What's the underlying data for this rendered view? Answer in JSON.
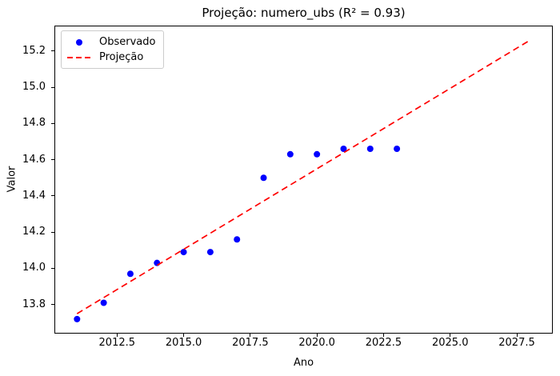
{
  "chart_data": {
    "type": "scatter",
    "title": "Projeção: numero_ubs (R² = 0.93)",
    "xlabel": "Ano",
    "ylabel": "Valor",
    "r_squared": 0.93,
    "grid": false,
    "legend_position": "upper left",
    "xlim": [
      2010.15,
      2028.85
    ],
    "ylim": [
      13.64,
      15.34
    ],
    "xtick_labels": [
      "2012.5",
      "2015.0",
      "2017.5",
      "2020.0",
      "2022.5",
      "2025.0",
      "2027.5"
    ],
    "ytick_labels": [
      "13.8",
      "14.0",
      "14.2",
      "14.4",
      "14.6",
      "14.8",
      "15.0",
      "15.2"
    ],
    "series": [
      {
        "name": "Observado",
        "type": "scatter",
        "marker": "circle",
        "color": "#0000ff",
        "x": [
          2011,
          2012,
          2013,
          2014,
          2015,
          2016,
          2017,
          2018,
          2019,
          2020,
          2021,
          2022,
          2023
        ],
        "y": [
          13.72,
          13.81,
          13.97,
          14.03,
          14.09,
          14.09,
          14.16,
          14.5,
          14.63,
          14.63,
          14.66,
          14.66,
          14.66
        ]
      },
      {
        "name": "Projeção",
        "type": "line",
        "style": "dashed",
        "color": "#ff0000",
        "x": [
          2011,
          2028
        ],
        "y": [
          13.75,
          15.26
        ]
      }
    ]
  }
}
